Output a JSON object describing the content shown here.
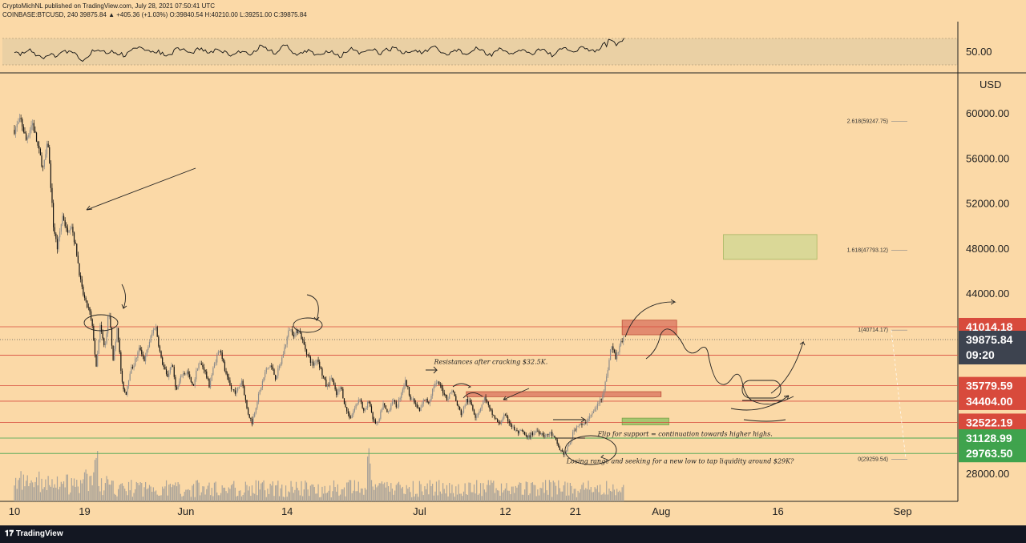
{
  "header": {
    "line1": "CryptoMichNL published on TradingView.com, July 28, 2021 07:50:41 UTC",
    "line2": "COINBASE:BTCUSD, 240  39875.84  ▲ +405.36 (+1.03%)  O:39840.54  H:40210.00  L:39251.00  C:39875.84"
  },
  "footer": {
    "logo_text": "TradingView",
    "logo_icon": "tradingview-logo-icon"
  },
  "colors": {
    "background": "#fbd9a7",
    "resistance": "#d84a3c",
    "support": "#3fa34d",
    "candle_up": "#8b8b8b",
    "candle_down": "#111111",
    "volume": "#a9a39a",
    "rsi_band": "#ead0a4"
  },
  "rsi": {
    "level_label": "50.00"
  },
  "axis": {
    "currency": "USD"
  },
  "chart_data": {
    "type": "candlestick",
    "symbol": "COINBASE:BTCUSD",
    "interval": "240",
    "ylim": [
      27000,
      63000
    ],
    "yticks": [
      "60000.00",
      "56000.00",
      "52000.00",
      "48000.00",
      "44000.00",
      "28000.00"
    ],
    "xticks": [
      {
        "label": "10",
        "d": 0
      },
      {
        "label": "19",
        "d": 9
      },
      {
        "label": "Jun",
        "d": 22
      },
      {
        "label": "14",
        "d": 35
      },
      {
        "label": "Jul",
        "d": 52
      },
      {
        "label": "12",
        "d": 63
      },
      {
        "label": "21",
        "d": 72
      },
      {
        "label": "Aug",
        "d": 83
      },
      {
        "label": "16",
        "d": 98
      },
      {
        "label": "Sep",
        "d": 114
      }
    ],
    "price_path": [
      [
        0,
        58500
      ],
      [
        0.8,
        59400
      ],
      [
        1.5,
        57600
      ],
      [
        2.3,
        59200
      ],
      [
        3,
        57000
      ],
      [
        3.7,
        55000
      ],
      [
        4.3,
        57500
      ],
      [
        5,
        50000
      ],
      [
        5.5,
        48000
      ],
      [
        6.2,
        51000
      ],
      [
        6.7,
        49500
      ],
      [
        7.3,
        50200
      ],
      [
        8,
        47500
      ],
      [
        8.6,
        44500
      ],
      [
        9.2,
        43000
      ],
      [
        9.6,
        42500
      ],
      [
        10.1,
        40500
      ],
      [
        10.5,
        37300
      ],
      [
        11,
        41000
      ],
      [
        11.6,
        39000
      ],
      [
        12.1,
        42500
      ],
      [
        12.7,
        38000
      ],
      [
        13.2,
        41200
      ],
      [
        13.8,
        36000
      ],
      [
        14.3,
        35000
      ],
      [
        14.8,
        37000
      ],
      [
        15.4,
        37800
      ],
      [
        16.1,
        39200
      ],
      [
        16.7,
        38000
      ],
      [
        17.4,
        39900
      ],
      [
        18.1,
        41200
      ],
      [
        18.8,
        38200
      ],
      [
        19.6,
        36500
      ],
      [
        20.2,
        37800
      ],
      [
        20.8,
        35300
      ],
      [
        21.5,
        36800
      ],
      [
        22.2,
        37000
      ],
      [
        22.9,
        35600
      ],
      [
        23.6,
        37800
      ],
      [
        24.3,
        37400
      ],
      [
        25,
        35800
      ],
      [
        25.7,
        37800
      ],
      [
        26.4,
        39200
      ],
      [
        27.1,
        36800
      ],
      [
        27.8,
        35500
      ],
      [
        28.5,
        35200
      ],
      [
        29.2,
        36300
      ],
      [
        29.9,
        33500
      ],
      [
        30.5,
        32500
      ],
      [
        31.1,
        34300
      ],
      [
        31.7,
        35800
      ],
      [
        32.3,
        37200
      ],
      [
        32.9,
        37600
      ],
      [
        33.5,
        36500
      ],
      [
        34.1,
        37600
      ],
      [
        34.7,
        39200
      ],
      [
        35.3,
        40900
      ],
      [
        35.9,
        40300
      ],
      [
        36.5,
        40800
      ],
      [
        37.1,
        39500
      ],
      [
        37.7,
        38400
      ],
      [
        38.3,
        37600
      ],
      [
        38.9,
        38200
      ],
      [
        39.5,
        36800
      ],
      [
        40.1,
        35600
      ],
      [
        40.7,
        36600
      ],
      [
        41.3,
        34900
      ],
      [
        41.9,
        35700
      ],
      [
        42.5,
        33800
      ],
      [
        43.1,
        32900
      ],
      [
        43.7,
        33800
      ],
      [
        44.3,
        34800
      ],
      [
        44.9,
        33300
      ],
      [
        45.5,
        34500
      ],
      [
        46.1,
        32600
      ],
      [
        46.7,
        32400
      ],
      [
        47.3,
        34200
      ],
      [
        47.9,
        33300
      ],
      [
        48.5,
        34500
      ],
      [
        49.1,
        33900
      ],
      [
        49.7,
        35300
      ],
      [
        50.2,
        36200
      ],
      [
        50.8,
        34800
      ],
      [
        51.4,
        34200
      ],
      [
        52,
        33500
      ],
      [
        52.6,
        34600
      ],
      [
        53.2,
        34300
      ],
      [
        53.8,
        35800
      ],
      [
        54.4,
        36000
      ],
      [
        55,
        35300
      ],
      [
        55.6,
        34600
      ],
      [
        56.2,
        35500
      ],
      [
        56.8,
        34100
      ],
      [
        57.4,
        33200
      ],
      [
        58,
        34500
      ],
      [
        58.6,
        34200
      ],
      [
        59.2,
        33000
      ],
      [
        59.8,
        33800
      ],
      [
        60.4,
        34800
      ],
      [
        61,
        33600
      ],
      [
        61.6,
        33000
      ],
      [
        62.2,
        32300
      ],
      [
        62.8,
        33100
      ],
      [
        63.4,
        32700
      ],
      [
        64,
        32000
      ],
      [
        64.6,
        31600
      ],
      [
        65.2,
        31700
      ],
      [
        65.8,
        31100
      ],
      [
        66.4,
        31500
      ],
      [
        67,
        31800
      ],
      [
        67.6,
        31600
      ],
      [
        68.2,
        31300
      ],
      [
        68.8,
        31600
      ],
      [
        69.4,
        31000
      ],
      [
        70,
        30100
      ],
      [
        70.6,
        29700
      ],
      [
        71.2,
        30500
      ],
      [
        71.8,
        31800
      ],
      [
        72.4,
        32400
      ],
      [
        73,
        32200
      ],
      [
        73.6,
        32900
      ],
      [
        74.2,
        33300
      ],
      [
        74.8,
        34000
      ],
      [
        75.4,
        34800
      ],
      [
        76,
        36500
      ],
      [
        76.6,
        39400
      ],
      [
        77.2,
        38200
      ],
      [
        77.8,
        39700
      ],
      [
        78.3,
        39876
      ]
    ],
    "horizontal_levels": [
      {
        "price": 41014.18,
        "label": "41014.18",
        "color": "resistance"
      },
      {
        "price": 38494.19,
        "label": "38494.19",
        "color": "resistance"
      },
      {
        "price": 35779.59,
        "label": "35779.59",
        "color": "resistance"
      },
      {
        "price": 34404.0,
        "label": "34404.00",
        "color": "resistance"
      },
      {
        "price": 32522.19,
        "label": "32522.19",
        "color": "resistance"
      },
      {
        "price": 31128.99,
        "label": "31128.99",
        "color": "support"
      },
      {
        "price": 29763.5,
        "label": "29763.50",
        "color": "support"
      }
    ],
    "current_price": {
      "label": "39875.84",
      "countdown": "09:20",
      "price": 39875.84
    },
    "fibonacci": [
      {
        "label": "2.618(59247.75)",
        "price": 59247.75
      },
      {
        "label": "1.618(47793.12)",
        "price": 47793.12
      },
      {
        "label": "1(40714.17)",
        "price": 40714.17
      },
      {
        "label": "0(29259.54)",
        "price": 29259.54
      }
    ],
    "zones": [
      {
        "kind": "resistance",
        "d0": 78,
        "d1": 85,
        "p0": 40300,
        "p1": 41600
      },
      {
        "kind": "resistance",
        "d0": 58,
        "d1": 83,
        "p0": 34800,
        "p1": 35250
      },
      {
        "kind": "support",
        "d0": 78,
        "d1": 84,
        "p0": 32300,
        "p1": 32900
      },
      {
        "kind": "target",
        "d0": 91,
        "d1": 103,
        "p0": 47000,
        "p1": 49200
      }
    ],
    "annotations": [
      {
        "text": "Resistances after cracking $32.5K.",
        "d": 59,
        "p": 37700
      },
      {
        "text": "Flip for support = continuation towards higher highs.",
        "d": 80,
        "p": 31300
      },
      {
        "text": "Losing range and seeking for a new low to tap liquidity around $29K?",
        "d": 76,
        "p": 28900
      }
    ]
  }
}
